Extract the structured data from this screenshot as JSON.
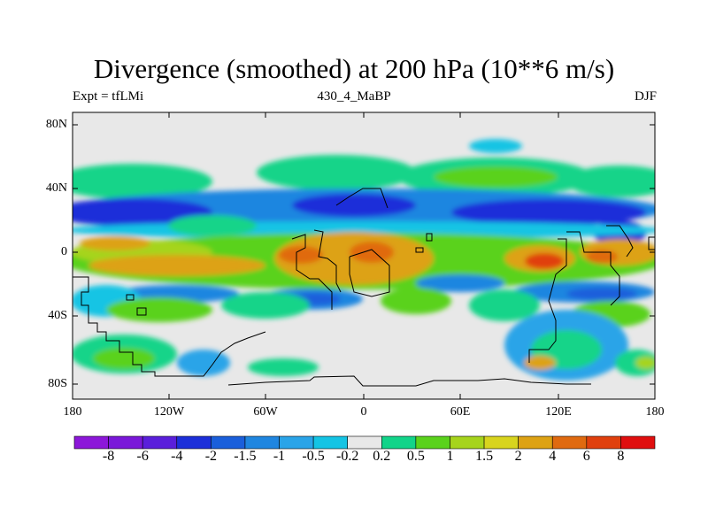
{
  "title": "Divergence (smoothed) at 200 hPa (10**6 m/s)",
  "left_label": "Expt = tfLMi",
  "center_label": "430_4_MaBP",
  "right_label": "DJF",
  "y_labels": [
    "80N",
    "40N",
    "0",
    "40S",
    "80S"
  ],
  "x_labels": [
    "180",
    "120W",
    "60W",
    "0",
    "60E",
    "120E",
    "180"
  ],
  "colorbar": {
    "colors": [
      "#8c17d9",
      "#7a18d9",
      "#5a1fdb",
      "#1c2fd9",
      "#1a5fdb",
      "#1f86e0",
      "#2aa4e8",
      "#14c4e4",
      "#e8e8e8",
      "#12d489",
      "#5ad21c",
      "#a6d41c",
      "#d8d41e",
      "#dda214",
      "#e06a10",
      "#e0400e",
      "#e00f0f"
    ],
    "labels": [
      "-8",
      "-6",
      "-4",
      "-2",
      "-1.5",
      "-1",
      "-0.5",
      "-0.2",
      "0.2",
      "0.5",
      "1",
      "1.5",
      "2",
      "4",
      "6",
      "8"
    ]
  },
  "map_data": {
    "variable": "Divergence (smoothed)",
    "level": "200 hPa",
    "units": "10**6 m/s",
    "season": "DJF",
    "lon_range": [
      -180,
      180
    ],
    "lat_range": [
      -90,
      90
    ]
  }
}
